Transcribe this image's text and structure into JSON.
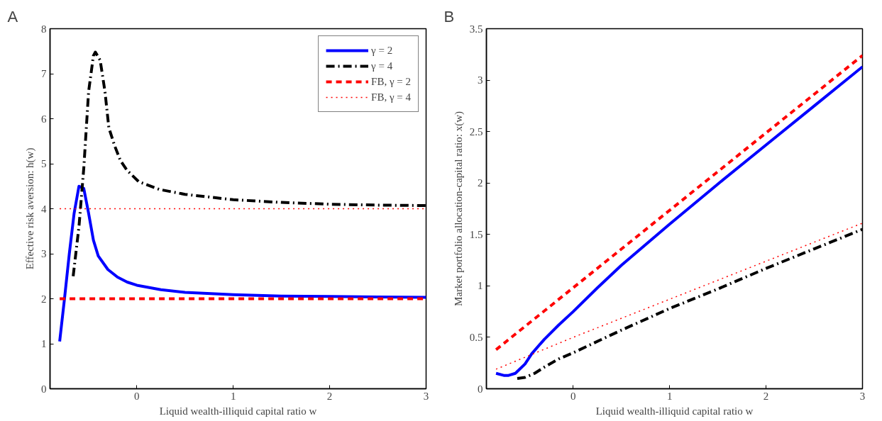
{
  "chart_data": [
    {
      "type": "line",
      "title": "A",
      "xlabel": "Liquid wealth-illiquid capital ratio w",
      "ylabel": "Effective risk aversion: h(w)",
      "xlim": [
        -0.9,
        3
      ],
      "ylim": [
        0,
        8
      ],
      "xticks": [
        0,
        1,
        2,
        3
      ],
      "yticks": [
        0,
        1,
        2,
        3,
        4,
        5,
        6,
        7,
        8
      ],
      "grid": false,
      "legend": "top right",
      "series": [
        {
          "name": "γ = 2",
          "color": "#0000ff",
          "line_style": "solid",
          "x": [
            -0.8,
            -0.75,
            -0.7,
            -0.65,
            -0.6,
            -0.55,
            -0.5,
            -0.45,
            -0.4,
            -0.3,
            -0.2,
            -0.1,
            0,
            0.25,
            0.5,
            1,
            1.5,
            2,
            2.5,
            3
          ],
          "values": [
            1.05,
            2.0,
            3.0,
            3.9,
            4.5,
            4.45,
            3.9,
            3.3,
            2.95,
            2.65,
            2.48,
            2.37,
            2.3,
            2.2,
            2.14,
            2.09,
            2.06,
            2.05,
            2.04,
            2.03
          ]
        },
        {
          "name": "γ = 4",
          "color": "#000000",
          "line_style": "dashdot",
          "x": [
            -0.66,
            -0.6,
            -0.55,
            -0.5,
            -0.45,
            -0.43,
            -0.38,
            -0.33,
            -0.29,
            -0.23,
            -0.17,
            -0.1,
            0.02,
            0.23,
            0.5,
            1,
            1.5,
            2,
            2.5,
            3
          ],
          "values": [
            2.5,
            3.6,
            4.9,
            6.6,
            7.4,
            7.48,
            7.3,
            6.6,
            5.8,
            5.4,
            5.07,
            4.85,
            4.6,
            4.43,
            4.32,
            4.2,
            4.14,
            4.1,
            4.08,
            4.07
          ]
        },
        {
          "name": "FB, γ = 2",
          "color": "#ff0000",
          "line_style": "dashed",
          "x": [
            -0.8,
            3
          ],
          "values": [
            2,
            2
          ]
        },
        {
          "name": "FB, γ = 4",
          "color": "#ff0000",
          "line_style": "dotted",
          "x": [
            -0.8,
            3
          ],
          "values": [
            4,
            4
          ]
        }
      ]
    },
    {
      "type": "line",
      "title": "B",
      "xlabel": "Liquid wealth-illiquid capital ratio w",
      "ylabel": "Market portfolio allocation-capital ratio: x(w)",
      "xlim": [
        -0.9,
        3
      ],
      "ylim": [
        0,
        3.5
      ],
      "xticks": [
        0,
        1,
        2,
        3
      ],
      "yticks": [
        0,
        0.5,
        1,
        1.5,
        2,
        2.5,
        3,
        3.5
      ],
      "grid": false,
      "legend": false,
      "series": [
        {
          "color": "#0000ff",
          "line_style": "solid",
          "x": [
            -0.8,
            -0.72,
            -0.67,
            -0.6,
            -0.5,
            -0.43,
            -0.3,
            -0.15,
            0,
            0.25,
            0.5,
            1,
            1.5,
            2,
            2.5,
            3
          ],
          "values": [
            0.15,
            0.13,
            0.13,
            0.15,
            0.24,
            0.34,
            0.48,
            0.62,
            0.75,
            0.98,
            1.2,
            1.6,
            1.99,
            2.37,
            2.75,
            3.13
          ]
        },
        {
          "color": "#000000",
          "line_style": "dashdot",
          "x": [
            -0.58,
            -0.5,
            -0.4,
            -0.3,
            -0.15,
            0,
            0.5,
            1,
            1.5,
            2,
            2.5,
            3
          ],
          "values": [
            0.1,
            0.11,
            0.15,
            0.21,
            0.29,
            0.35,
            0.57,
            0.78,
            0.97,
            1.17,
            1.36,
            1.55
          ]
        },
        {
          "color": "#ff0000",
          "line_style": "dashed",
          "x": [
            -0.8,
            3
          ],
          "values": [
            0.38,
            3.24
          ]
        },
        {
          "color": "#ff0000",
          "line_style": "dotted",
          "x": [
            -0.8,
            0,
            1,
            2,
            3
          ],
          "values": [
            0.19,
            0.5,
            0.87,
            1.24,
            1.61
          ]
        }
      ]
    }
  ]
}
